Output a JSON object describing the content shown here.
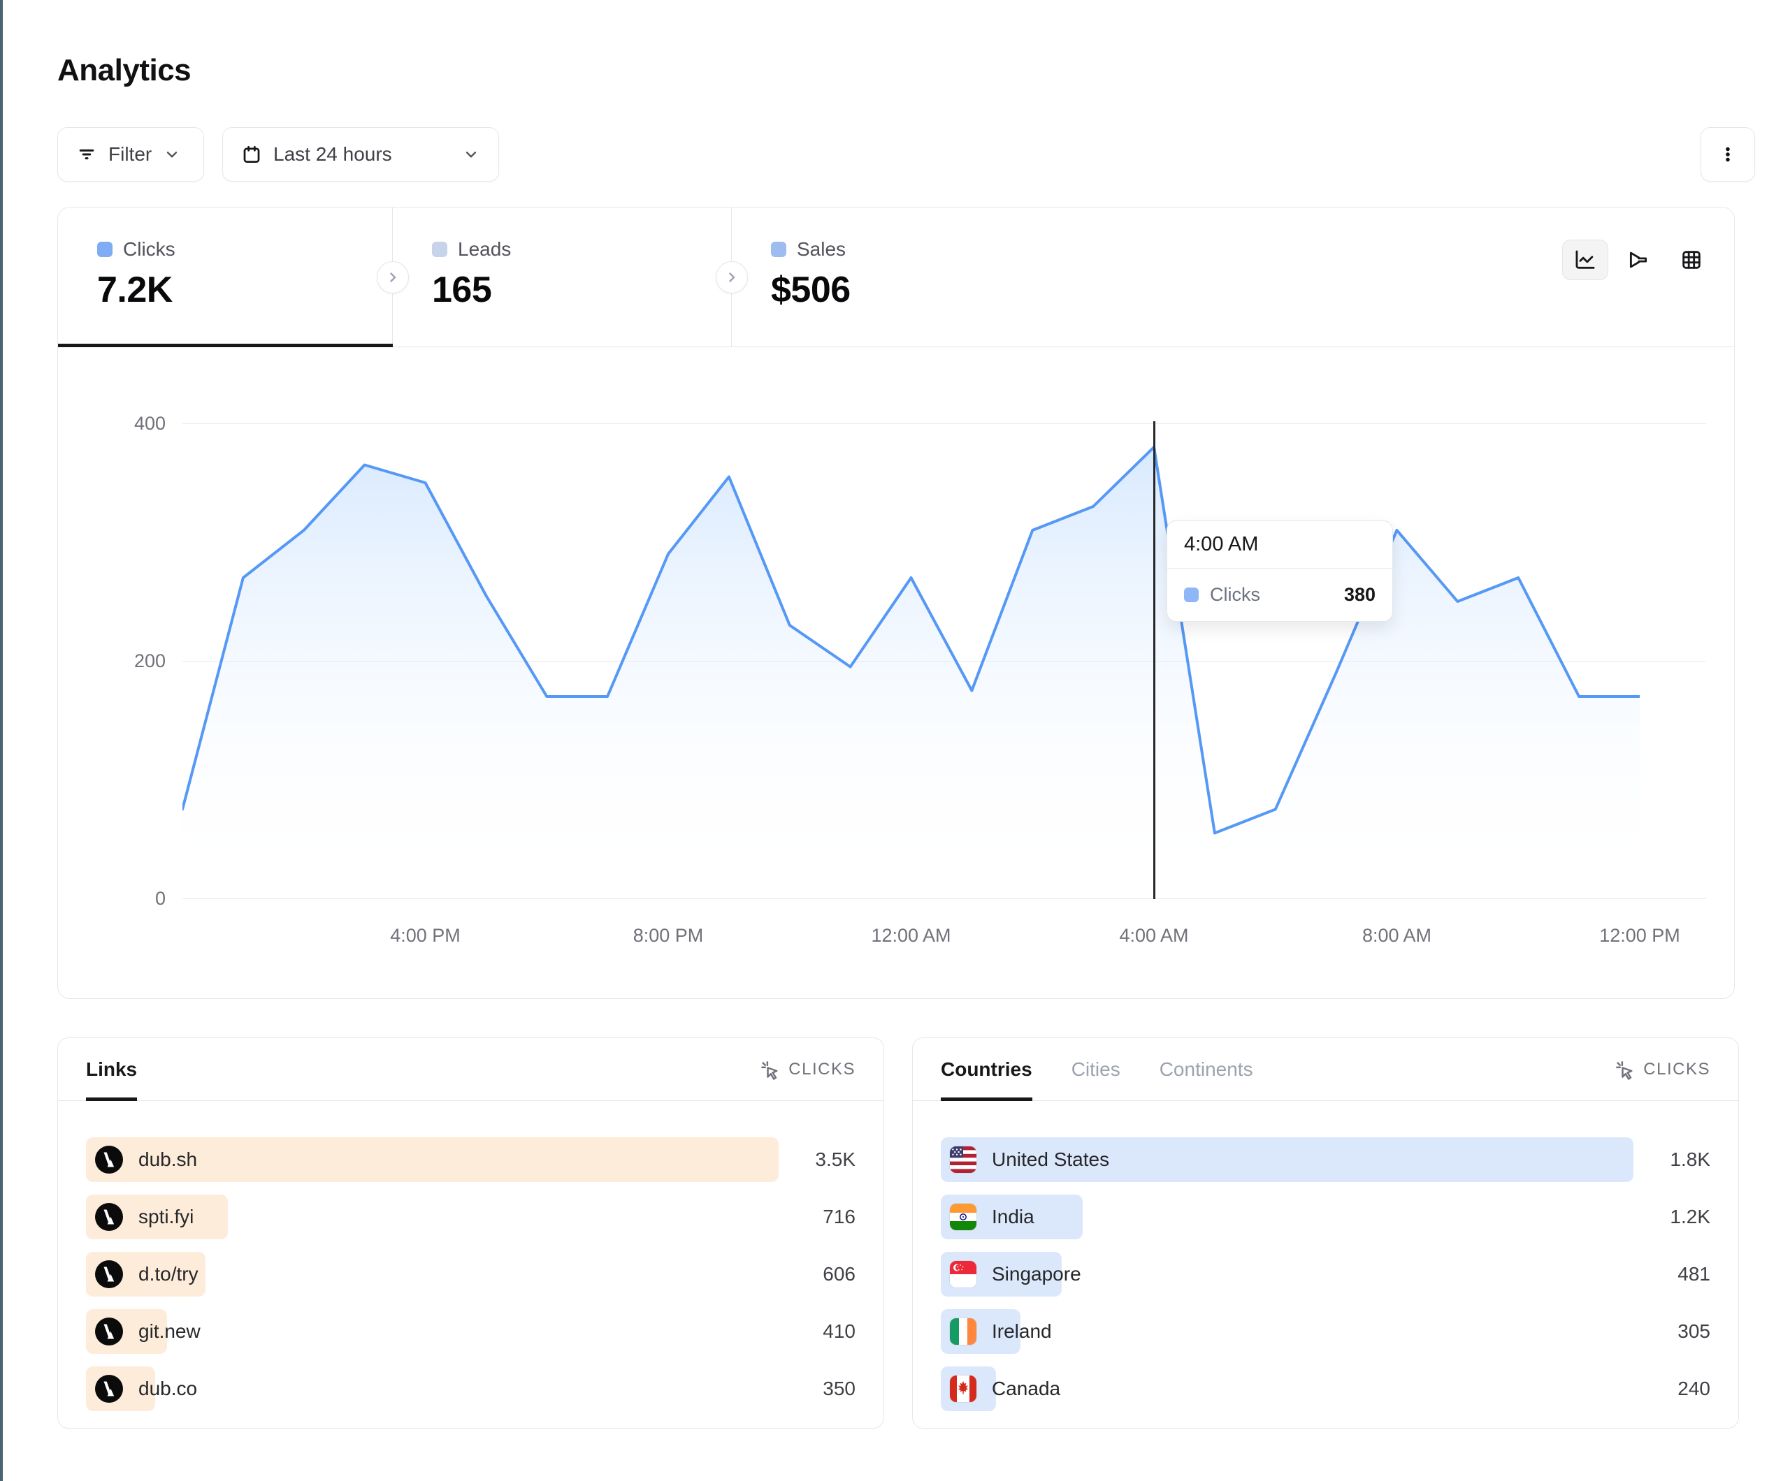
{
  "page": {
    "title": "Analytics"
  },
  "toolbar": {
    "filter_label": "Filter",
    "date_range_label": "Last 24 hours"
  },
  "stats": {
    "clicks": {
      "label": "Clicks",
      "value": "7.2K"
    },
    "leads": {
      "label": "Leads",
      "value": "165"
    },
    "sales": {
      "label": "Sales",
      "value": "$506"
    }
  },
  "chart_controls": {
    "icons": [
      "line-chart",
      "funnel-chart",
      "table-grid"
    ],
    "active": "line-chart"
  },
  "chart_data": {
    "type": "area",
    "series_name": "Clicks",
    "x": [
      "12:00 PM",
      "1:00 PM",
      "2:00 PM",
      "3:00 PM",
      "4:00 PM",
      "5:00 PM",
      "6:00 PM",
      "7:00 PM",
      "8:00 PM",
      "9:00 PM",
      "10:00 PM",
      "11:00 PM",
      "12:00 AM",
      "1:00 AM",
      "2:00 AM",
      "3:00 AM",
      "4:00 AM",
      "5:00 AM",
      "6:00 AM",
      "7:00 AM",
      "8:00 AM",
      "9:00 AM",
      "10:00 AM",
      "11:00 AM",
      "12:00 PM"
    ],
    "values": [
      75,
      270,
      310,
      365,
      350,
      255,
      170,
      170,
      290,
      355,
      230,
      195,
      270,
      175,
      310,
      330,
      380,
      55,
      75,
      190,
      310,
      250,
      270,
      170,
      170
    ],
    "xticks": [
      "4:00 PM",
      "8:00 PM",
      "12:00 AM",
      "4:00 AM",
      "8:00 AM",
      "12:00 PM"
    ],
    "yticks": [
      400,
      200,
      0
    ],
    "ylim": [
      0,
      410
    ],
    "grid": true,
    "legend_position": "none",
    "hover": {
      "index": 16,
      "label": "4:00 AM",
      "series": "Clicks",
      "value": "380"
    }
  },
  "links_panel": {
    "tab_label": "Links",
    "metric_label": "CLICKS",
    "rows": [
      {
        "label": "dub.sh",
        "value": "3.5K",
        "clicks": 3500,
        "bar_pct": 100,
        "icon": "dub-logo"
      },
      {
        "label": "spti.fyi",
        "value": "716",
        "clicks": 716,
        "bar_pct": 20.5,
        "icon": "dub-logo"
      },
      {
        "label": "d.to/try",
        "value": "606",
        "clicks": 606,
        "bar_pct": 17.3,
        "icon": "dub-logo"
      },
      {
        "label": "git.new",
        "value": "410",
        "clicks": 410,
        "bar_pct": 11.7,
        "icon": "dub-logo"
      },
      {
        "label": "dub.co",
        "value": "350",
        "clicks": 350,
        "bar_pct": 10,
        "icon": "dub-logo"
      }
    ]
  },
  "geo_panel": {
    "tabs": [
      {
        "label": "Countries",
        "active": true
      },
      {
        "label": "Cities",
        "active": false
      },
      {
        "label": "Continents",
        "active": false
      }
    ],
    "metric_label": "CLICKS",
    "rows": [
      {
        "label": "United States",
        "value": "1.8K",
        "bar_pct": 100,
        "flag": "us"
      },
      {
        "label": "India",
        "value": "1.2K",
        "bar_pct": 20.5,
        "flag": "in"
      },
      {
        "label": "Singapore",
        "value": "481",
        "bar_pct": 17.5,
        "flag": "sg"
      },
      {
        "label": "Ireland",
        "value": "305",
        "bar_pct": 11.5,
        "flag": "ie"
      },
      {
        "label": "Canada",
        "value": "240",
        "bar_pct": 8,
        "flag": "ca"
      }
    ]
  },
  "colors": {
    "chart_line": "#5598f6",
    "chart_area_top": "#c9defb",
    "links_bar": "#fdecd9",
    "geo_bar": "#dbe8fb",
    "clicks_square": "#7facf4",
    "leads_square": "#c7d3e8",
    "sales_square": "#9dbdf0",
    "tooltip_square": "#8fb6f7",
    "active_underline": "#171717"
  }
}
